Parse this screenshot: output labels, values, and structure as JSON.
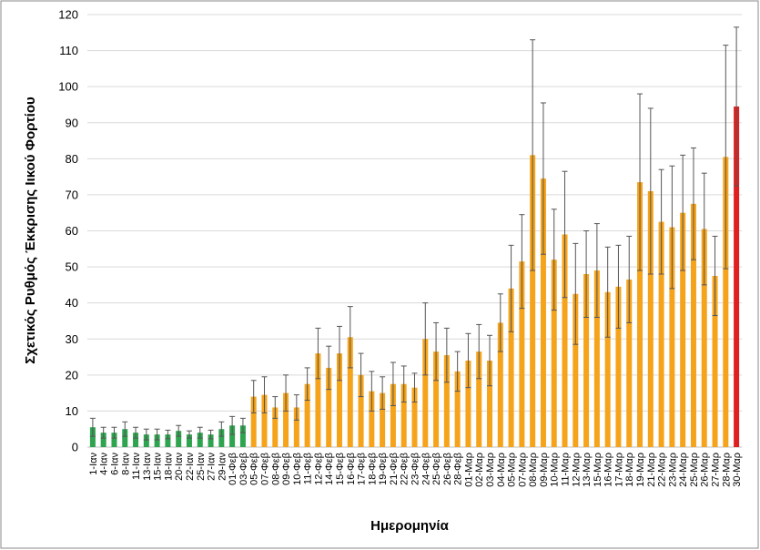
{
  "chart_data": {
    "type": "bar",
    "y_label": "Σχετικός Ρυθμός Έκκρισης Ιικού Φορτίου",
    "x_label": "Ημερομηνία",
    "categories": [
      "1-Ιαν",
      "4-Ιαν",
      "6-Ιαν",
      "8-Ιαν",
      "11-Ιαν",
      "13-Ιαν",
      "15-Ιαν",
      "18-Ιαν",
      "20-Ιαν",
      "22-Ιαν",
      "25-Ιαν",
      "27-Ιαν",
      "29-Ιαν",
      "01-Φεβ",
      "03-Φεβ",
      "05-Φεβ",
      "07-Φεβ",
      "08-Φεβ",
      "09-Φεβ",
      "10-Φεβ",
      "11-Φεβ",
      "12-Φεβ",
      "14-Φεβ",
      "15-Φεβ",
      "16-Φεβ",
      "17-Φεβ",
      "18-Φεβ",
      "19-Φεβ",
      "21-Φεβ",
      "22-Φεβ",
      "23-Φεβ",
      "24-Φεβ",
      "25-Φεβ",
      "26-Φεβ",
      "28-Φεβ",
      "01-Μαρ",
      "02-Μαρ",
      "03-Μαρ",
      "04-Μαρ",
      "05-Μαρ",
      "07-Μαρ",
      "08-Μαρ",
      "09-Μαρ",
      "10-Μαρ",
      "11-Μαρ",
      "12-Μαρ",
      "13-Μαρ",
      "15-Μαρ",
      "16-Μαρ",
      "17-Μαρ",
      "18-Μαρ",
      "19-Μαρ",
      "21-Μαρ",
      "22-Μαρ",
      "23-Μαρ",
      "24-Μαρ",
      "25-Μαρ",
      "26-Μαρ",
      "27-Μαρ",
      "28-Μαρ",
      "30-Μαρ"
    ],
    "values": [
      5.5,
      4,
      4,
      5,
      4,
      3.5,
      3.5,
      3.5,
      4.5,
      3.5,
      4,
      3.5,
      5,
      6,
      6,
      14,
      14.5,
      11,
      15,
      11,
      17.5,
      26,
      22,
      26,
      30.5,
      20,
      15.5,
      15,
      17.5,
      17.5,
      16.5,
      30,
      26.5,
      25.5,
      21,
      24,
      26.5,
      24,
      34.5,
      44,
      51.5,
      81,
      74.5,
      52,
      59,
      42.5,
      48,
      49,
      43,
      44.5,
      46.5,
      73.5,
      71,
      62.5,
      61,
      65,
      67.5,
      60.5,
      47.5,
      80.5,
      94.5
    ],
    "errors": [
      2.5,
      1.5,
      1.5,
      2,
      1.5,
      1.5,
      1.5,
      1.2,
      1.5,
      1,
      1.5,
      1.2,
      2,
      2.5,
      2,
      4.5,
      5,
      3,
      5,
      3.5,
      4.5,
      7,
      6,
      7.5,
      8.5,
      6,
      5.5,
      4.5,
      6,
      5,
      4,
      10,
      8,
      7.5,
      5.5,
      7.5,
      7.5,
      7,
      8,
      12,
      13,
      32,
      21,
      14,
      17.5,
      14,
      12,
      13,
      12.5,
      11.5,
      12,
      24.5,
      23,
      14.5,
      17,
      16,
      15.5,
      15.5,
      11,
      31,
      22
    ],
    "colors": [
      "#2ea44f",
      "#2ea44f",
      "#2ea44f",
      "#2ea44f",
      "#2ea44f",
      "#2ea44f",
      "#2ea44f",
      "#2ea44f",
      "#2ea44f",
      "#2ea44f",
      "#2ea44f",
      "#2ea44f",
      "#2ea44f",
      "#2ea44f",
      "#2ea44f",
      "#f5a31a",
      "#f5a31a",
      "#f5a31a",
      "#f5a31a",
      "#f5a31a",
      "#f5a31a",
      "#f5a31a",
      "#f5a31a",
      "#f5a31a",
      "#f5a31a",
      "#f5a31a",
      "#f5a31a",
      "#f5a31a",
      "#f5a31a",
      "#f5a31a",
      "#f5a31a",
      "#f5a31a",
      "#f5a31a",
      "#f5a31a",
      "#f5a31a",
      "#f5a31a",
      "#f5a31a",
      "#f5a31a",
      "#f5a31a",
      "#f5a31a",
      "#f5a31a",
      "#f5a31a",
      "#f5a31a",
      "#f5a31a",
      "#f5a31a",
      "#f5a31a",
      "#f5a31a",
      "#f5a31a",
      "#f5a31a",
      "#f5a31a",
      "#f5a31a",
      "#f5a31a",
      "#f5a31a",
      "#f5a31a",
      "#f5a31a",
      "#f5a31a",
      "#f5a31a",
      "#f5a31a",
      "#f5a31a",
      "#f5a31a",
      "#e02020"
    ],
    "ylim": [
      0,
      120
    ],
    "yticks": [
      0,
      10,
      20,
      30,
      40,
      50,
      60,
      70,
      80,
      90,
      100,
      110,
      120
    ],
    "grid": true
  }
}
